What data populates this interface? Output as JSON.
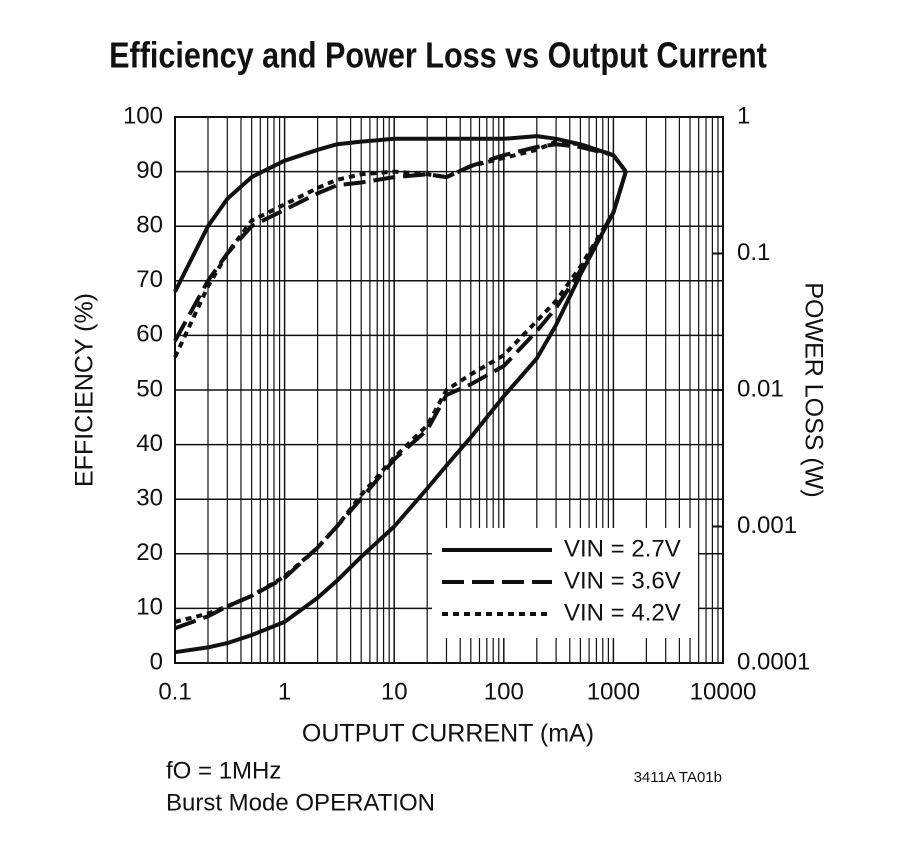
{
  "chart_data": {
    "type": "line",
    "title": "Efficiency and Power Loss vs Output Current",
    "x_label": "OUTPUT CURRENT (mA)",
    "y_label": "EFFICIENCY (%)",
    "y2_label": "POWER LOSS (W)",
    "x_scale": "log",
    "y2_scale": "log",
    "grid": true,
    "x": [
      0.1,
      0.2,
      0.3,
      0.5,
      1,
      2,
      3,
      5,
      10,
      20,
      30,
      50,
      100,
      200,
      300,
      500,
      1000,
      1300
    ],
    "xlim": [
      0.1,
      10000
    ],
    "xticks": [
      0.1,
      1,
      10,
      100,
      1000,
      10000
    ],
    "ylim": [
      0,
      100
    ],
    "yticks": [
      0,
      10,
      20,
      30,
      40,
      50,
      60,
      70,
      80,
      90,
      100
    ],
    "y2lim": [
      0.0001,
      1
    ],
    "y2ticks": [
      0.0001,
      0.001,
      0.01,
      0.1,
      1
    ],
    "legend": "lower right",
    "series": [
      {
        "name": "VIN = 2.7V",
        "color": "#111111",
        "dash": "solid",
        "values": [
          68,
          80,
          85,
          89,
          92,
          94,
          95,
          95.5,
          96,
          96,
          96,
          96,
          96,
          96.5,
          96,
          95,
          93,
          90
        ],
        "power_loss": [
          0.00012,
          0.00013,
          0.00014,
          0.00016,
          0.0002,
          0.0003,
          0.0004,
          0.0006,
          0.001,
          0.0019,
          0.0028,
          0.0045,
          0.009,
          0.017,
          0.03,
          0.07,
          0.2,
          0.4
        ]
      },
      {
        "name": "VIN = 3.6V",
        "color": "#111111",
        "dash": "dashed",
        "values": [
          59,
          70,
          75,
          80,
          83,
          86,
          87.5,
          88,
          89,
          89.5,
          89,
          91,
          93,
          94.5,
          95,
          94.5,
          93,
          90
        ],
        "power_loss": [
          0.00018,
          0.00022,
          0.00026,
          0.00031,
          0.00042,
          0.0007,
          0.001,
          0.0016,
          0.0031,
          0.0051,
          0.0092,
          0.011,
          0.015,
          0.027,
          0.04,
          0.075,
          0.2,
          0.4
        ]
      },
      {
        "name": "VIN = 4.2V",
        "color": "#111111",
        "dash": "dotted",
        "values": [
          56,
          69,
          75,
          81,
          84,
          87,
          88.5,
          89.5,
          90,
          89.5,
          89,
          91,
          92.5,
          94,
          95.5,
          95,
          93,
          90
        ],
        "power_loss": [
          0.0002,
          0.00023,
          0.00026,
          0.00031,
          0.00043,
          0.0007,
          0.001,
          0.0017,
          0.0032,
          0.0055,
          0.01,
          0.013,
          0.018,
          0.032,
          0.045,
          0.08,
          0.2,
          0.4
        ]
      }
    ],
    "annotations": [
      "fO = 1MHz",
      "Burst Mode OPERATION",
      "3411A TA01b"
    ]
  }
}
